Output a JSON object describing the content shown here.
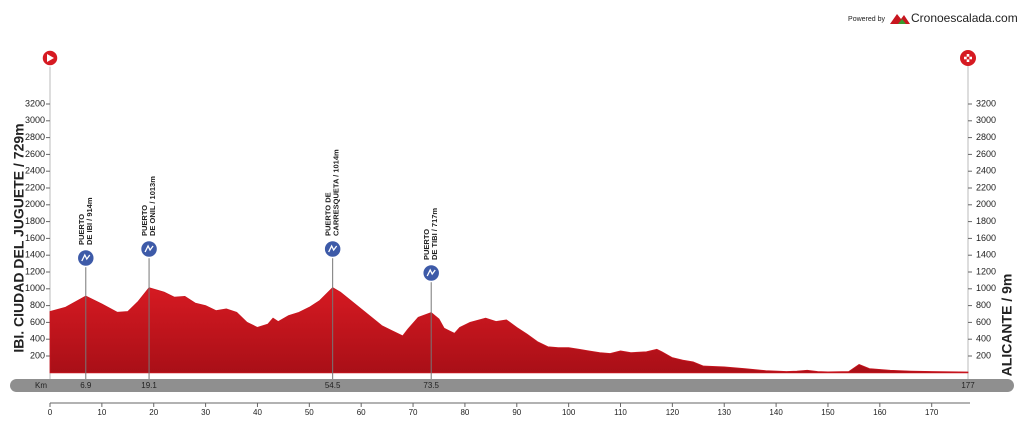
{
  "header": {
    "powered_by": "Powered by",
    "brand": "Cronoescalada.com"
  },
  "chart_data": {
    "type": "area",
    "start_label": "IBI. CIUDAD DEL JUGUETE / 729m",
    "finish_label": "ALICANTE / 9m",
    "km_label": "Km",
    "color": "#c8161f",
    "x": [
      0,
      3,
      6.9,
      10,
      13,
      15,
      17,
      19.1,
      22,
      24,
      26,
      28,
      30,
      32,
      34,
      36,
      38,
      40,
      42,
      43,
      44,
      46,
      48,
      50,
      52,
      54.5,
      56,
      58,
      60,
      62,
      64,
      66,
      68,
      69,
      71,
      73.5,
      75,
      76,
      77,
      78,
      79,
      81,
      84,
      86,
      88,
      90,
      92,
      94,
      96,
      98,
      100,
      102,
      104,
      106,
      108,
      110,
      112,
      115,
      117,
      118,
      120,
      122,
      124,
      126,
      130,
      134,
      138,
      142,
      144,
      146,
      148,
      150,
      154,
      156,
      158,
      162,
      166,
      170,
      177
    ],
    "values": [
      729,
      780,
      914,
      820,
      720,
      730,
      850,
      1013,
      960,
      900,
      910,
      830,
      800,
      740,
      760,
      720,
      600,
      540,
      580,
      650,
      610,
      680,
      720,
      780,
      860,
      1014,
      960,
      860,
      760,
      660,
      560,
      500,
      440,
      520,
      660,
      717,
      640,
      530,
      500,
      470,
      540,
      600,
      650,
      610,
      630,
      540,
      460,
      370,
      310,
      300,
      300,
      280,
      260,
      240,
      230,
      260,
      240,
      250,
      280,
      250,
      180,
      150,
      130,
      80,
      70,
      50,
      25,
      15,
      20,
      30,
      15,
      10,
      15,
      100,
      50,
      30,
      20,
      15,
      9
    ],
    "xlim": [
      0,
      177
    ],
    "xticks": [
      0,
      10,
      20,
      30,
      40,
      50,
      60,
      70,
      80,
      90,
      100,
      110,
      120,
      130,
      140,
      150,
      160,
      170
    ],
    "ylim": [
      0,
      3200
    ],
    "yticks": [
      200,
      400,
      600,
      800,
      1000,
      1200,
      1400,
      1600,
      1800,
      2000,
      2200,
      2400,
      2600,
      2800,
      3000,
      3200
    ],
    "climbs": [
      {
        "name": [
          "PUERTO",
          "DE IBI / 914m"
        ],
        "km": 6.9
      },
      {
        "name": [
          "PUERTO",
          "DE ONIL / 1013m"
        ],
        "km": 19.1
      },
      {
        "name": [
          "PUERTO DE",
          "CARRESQUETA / 1014m"
        ],
        "km": 54.5
      },
      {
        "name": [
          "PUERTO",
          "DE TIBI / 717m"
        ],
        "km": 73.5
      }
    ]
  }
}
